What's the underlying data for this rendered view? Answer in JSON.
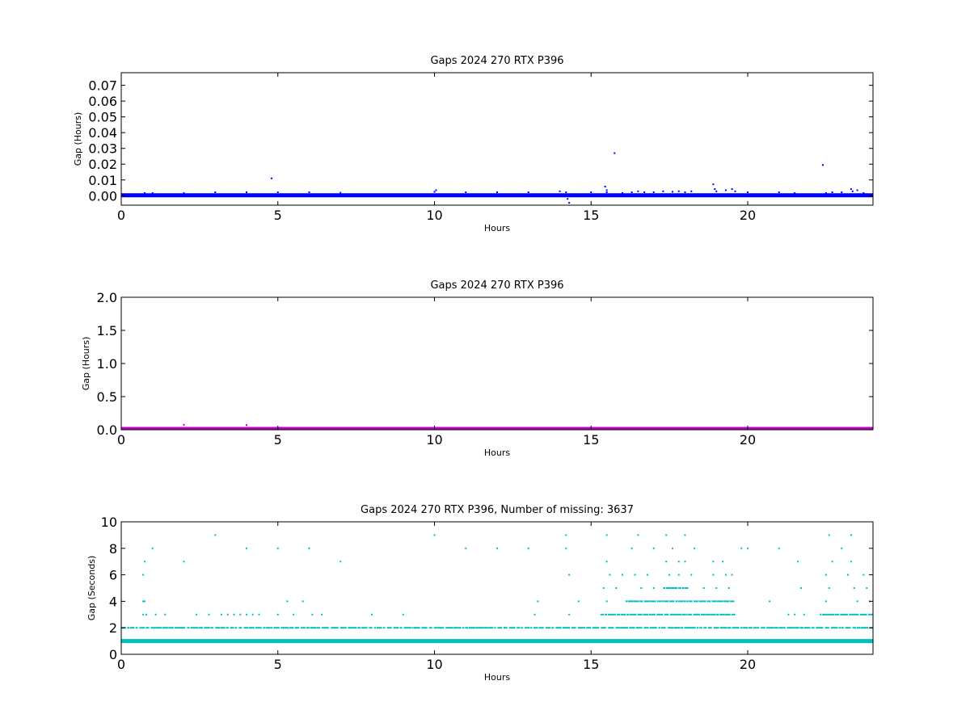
{
  "figure": {
    "background": "#ffffff"
  },
  "chart_data": [
    {
      "type": "scatter",
      "title": "Gaps 2024 270 RTX  P396",
      "xlabel": "Hours",
      "ylabel": "Gap (Hours)",
      "xlim": [
        0,
        24
      ],
      "ylim": [
        -0.006,
        0.078
      ],
      "xticks": [
        "0",
        "5",
        "10",
        "15",
        "20"
      ],
      "xtick_values": [
        0,
        5,
        10,
        15,
        20
      ],
      "yticks": [
        "0.00",
        "0.01",
        "0.02",
        "0.03",
        "0.04",
        "0.05",
        "0.06",
        "0.07"
      ],
      "ytick_values": [
        0,
        0.01,
        0.02,
        0.03,
        0.04,
        0.05,
        0.06,
        0.07
      ],
      "color": "#0000ff",
      "baseline": {
        "y": 0.000278,
        "x_range": [
          0,
          24
        ]
      },
      "points": [
        [
          0.75,
          0.0017
        ],
        [
          1.0,
          0.0017
        ],
        [
          2.0,
          0.0017
        ],
        [
          3.0,
          0.0022
        ],
        [
          4.0,
          0.0022
        ],
        [
          4.8,
          0.011
        ],
        [
          5.0,
          0.0022
        ],
        [
          6.0,
          0.0022
        ],
        [
          7.0,
          0.0019
        ],
        [
          10.0,
          0.0025
        ],
        [
          10.05,
          0.0035
        ],
        [
          11.0,
          0.0022
        ],
        [
          12.0,
          0.0022
        ],
        [
          13.0,
          0.0022
        ],
        [
          14.0,
          0.0028
        ],
        [
          14.2,
          0.0022
        ],
        [
          14.25,
          -0.002
        ],
        [
          14.3,
          -0.0045
        ],
        [
          15.0,
          0.0022
        ],
        [
          15.45,
          0.0058
        ],
        [
          15.5,
          0.0035
        ],
        [
          15.5,
          0.0022
        ],
        [
          15.75,
          0.027
        ],
        [
          16.0,
          0.0017
        ],
        [
          16.3,
          0.0022
        ],
        [
          16.5,
          0.0028
        ],
        [
          16.7,
          0.0022
        ],
        [
          17.0,
          0.0022
        ],
        [
          17.3,
          0.0028
        ],
        [
          17.6,
          0.0025
        ],
        [
          17.8,
          0.0028
        ],
        [
          18.0,
          0.0022
        ],
        [
          18.2,
          0.0028
        ],
        [
          18.9,
          0.0072
        ],
        [
          18.95,
          0.0042
        ],
        [
          19.0,
          0.0028
        ],
        [
          19.3,
          0.0035
        ],
        [
          19.5,
          0.0042
        ],
        [
          19.6,
          0.0028
        ],
        [
          20.0,
          0.0022
        ],
        [
          21.0,
          0.0022
        ],
        [
          21.5,
          0.0017
        ],
        [
          22.4,
          0.0195
        ],
        [
          22.5,
          0.0017
        ],
        [
          22.7,
          0.0022
        ],
        [
          23.0,
          0.0022
        ],
        [
          23.3,
          0.0042
        ],
        [
          23.35,
          0.0028
        ],
        [
          23.5,
          0.0035
        ],
        [
          23.7,
          0.0017
        ]
      ]
    },
    {
      "type": "scatter",
      "title": "Gaps 2024 270 RTX  P396",
      "xlabel": "Hours",
      "ylabel": "Gap (Hours)",
      "xlim": [
        0,
        24
      ],
      "ylim": [
        0,
        2.0
      ],
      "xticks": [
        "0",
        "5",
        "10",
        "15",
        "20"
      ],
      "xtick_values": [
        0,
        5,
        10,
        15,
        20
      ],
      "yticks": [
        "0.0",
        "0.5",
        "1.0",
        "1.5",
        "2.0"
      ],
      "ytick_values": [
        0,
        0.5,
        1.0,
        1.5,
        2.0
      ],
      "color": "#bf00bf",
      "baseline": {
        "y": 0.012,
        "x_range": [
          0,
          24
        ]
      },
      "points": [
        [
          2.0,
          0.075
        ],
        [
          4.0,
          0.07
        ],
        [
          15.75,
          0.03
        ]
      ]
    },
    {
      "type": "scatter",
      "title": "Gaps 2024 270 RTX  P396, Number of missing: 3637",
      "xlabel": "Hours",
      "ylabel": "Gap (Seconds)",
      "xlim": [
        0,
        24
      ],
      "ylim": [
        0,
        10
      ],
      "xticks": [
        "0",
        "5",
        "10",
        "15",
        "20"
      ],
      "xtick_values": [
        0,
        5,
        10,
        15,
        20
      ],
      "yticks": [
        "0",
        "2",
        "4",
        "6",
        "8",
        "10"
      ],
      "ytick_values": [
        0,
        2,
        4,
        6,
        8,
        10
      ],
      "color": "#00bfbf",
      "baseline": {
        "y": 1,
        "x_range": [
          0,
          24
        ]
      },
      "dense_levels": [
        {
          "y": 2,
          "x_range": [
            0,
            24
          ]
        },
        {
          "y": 3,
          "x_range": [
            15.3,
            19.6
          ]
        },
        {
          "y": 3,
          "x_range": [
            22.3,
            24
          ]
        },
        {
          "y": 4,
          "x_range": [
            16.1,
            19.6
          ]
        },
        {
          "y": 5,
          "x_range": [
            17.3,
            18.1
          ]
        }
      ],
      "points": [
        [
          0.7,
          4
        ],
        [
          0.75,
          4
        ],
        [
          0.7,
          3
        ],
        [
          0.8,
          3
        ],
        [
          0.7,
          6
        ],
        [
          0.75,
          7
        ],
        [
          1.0,
          8
        ],
        [
          1.1,
          3
        ],
        [
          1.4,
          3
        ],
        [
          2.0,
          7
        ],
        [
          2.4,
          3
        ],
        [
          2.8,
          3
        ],
        [
          3.0,
          9
        ],
        [
          3.2,
          3
        ],
        [
          3.4,
          3
        ],
        [
          3.6,
          3
        ],
        [
          3.8,
          3
        ],
        [
          4.0,
          8
        ],
        [
          4.0,
          3
        ],
        [
          4.2,
          3
        ],
        [
          4.4,
          3
        ],
        [
          5.0,
          8
        ],
        [
          5.0,
          3
        ],
        [
          5.3,
          4
        ],
        [
          5.5,
          3
        ],
        [
          5.8,
          4
        ],
        [
          6.0,
          8
        ],
        [
          6.1,
          3
        ],
        [
          6.4,
          3
        ],
        [
          7.0,
          7
        ],
        [
          8.0,
          3
        ],
        [
          9.0,
          3
        ],
        [
          10.0,
          9
        ],
        [
          11.0,
          8
        ],
        [
          12.0,
          8
        ],
        [
          13.0,
          8
        ],
        [
          13.3,
          4
        ],
        [
          13.2,
          3
        ],
        [
          14.2,
          9
        ],
        [
          14.2,
          8
        ],
        [
          14.3,
          6
        ],
        [
          14.3,
          3
        ],
        [
          14.6,
          4
        ],
        [
          15.5,
          9
        ],
        [
          15.5,
          7
        ],
        [
          15.4,
          5
        ],
        [
          15.5,
          4
        ],
        [
          15.6,
          6
        ],
        [
          15.8,
          5
        ],
        [
          16.0,
          6
        ],
        [
          16.3,
          8
        ],
        [
          16.5,
          9
        ],
        [
          16.4,
          6
        ],
        [
          16.6,
          5
        ],
        [
          16.8,
          6
        ],
        [
          17.0,
          8
        ],
        [
          17.0,
          5
        ],
        [
          17.4,
          9
        ],
        [
          17.4,
          7
        ],
        [
          17.6,
          8
        ],
        [
          17.5,
          6
        ],
        [
          17.8,
          7
        ],
        [
          17.8,
          6
        ],
        [
          18.0,
          9
        ],
        [
          18.0,
          7
        ],
        [
          18.3,
          8
        ],
        [
          18.2,
          6
        ],
        [
          18.6,
          5
        ],
        [
          18.9,
          7
        ],
        [
          18.9,
          6
        ],
        [
          19.0,
          5
        ],
        [
          19.2,
          7
        ],
        [
          19.3,
          6
        ],
        [
          19.4,
          5
        ],
        [
          19.5,
          6
        ],
        [
          19.8,
          8
        ],
        [
          20.0,
          8
        ],
        [
          20.7,
          4
        ],
        [
          21.0,
          8
        ],
        [
          21.3,
          3
        ],
        [
          21.5,
          3
        ],
        [
          21.8,
          3
        ],
        [
          21.6,
          7
        ],
        [
          21.7,
          5
        ],
        [
          22.6,
          9
        ],
        [
          22.5,
          6
        ],
        [
          22.6,
          5
        ],
        [
          22.7,
          7
        ],
        [
          22.5,
          4
        ],
        [
          23.0,
          8
        ],
        [
          23.3,
          9
        ],
        [
          23.2,
          6
        ],
        [
          23.3,
          7
        ],
        [
          23.4,
          5
        ],
        [
          23.5,
          4
        ],
        [
          23.7,
          6
        ],
        [
          23.8,
          5
        ],
        [
          23.9,
          4
        ]
      ]
    }
  ]
}
